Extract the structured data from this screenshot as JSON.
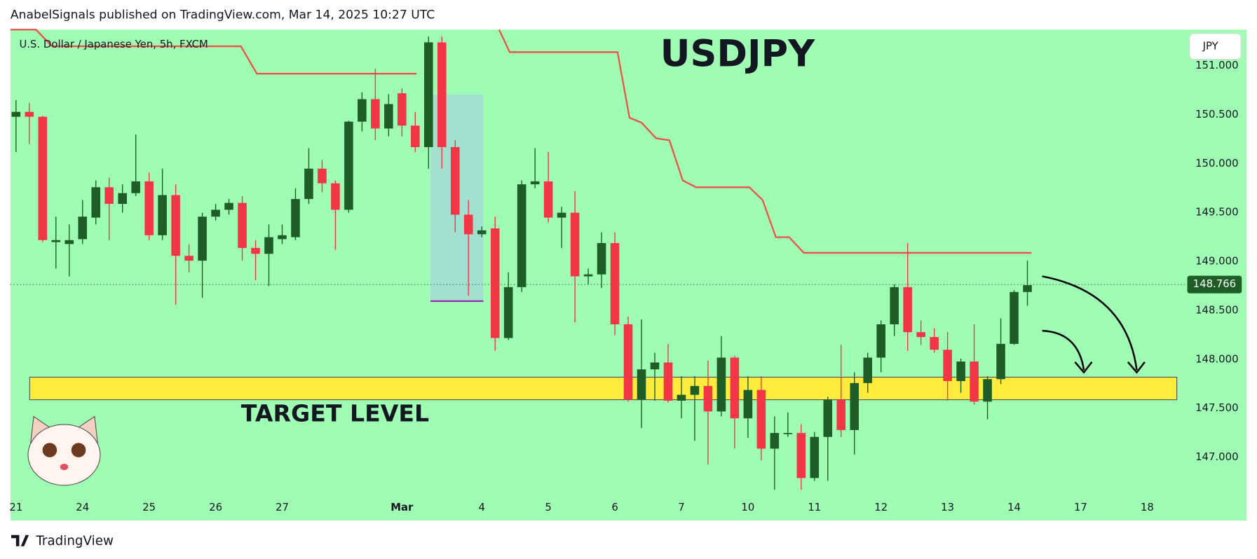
{
  "chart_data": {
    "type": "candlestick",
    "header": "AnabelSignals published on TradingView.com, Mar 14, 2025 10:27 UTC",
    "subtitle": "U.S. Dollar / Japanese Yen, 5h, FXCM",
    "title": "USDJPY",
    "currency": "JPY",
    "footer": "TradingView",
    "up_color": "#1e5e26",
    "down_color": "#f23645",
    "open": [
      150.48,
      150.53,
      150.48,
      149.2,
      149.18,
      149.23,
      149.45,
      149.76,
      149.59,
      149.7,
      149.82,
      149.27,
      149.68,
      149.06,
      149.01,
      149.46,
      149.53,
      149.6,
      149.14,
      149.08,
      149.23,
      149.25,
      149.64,
      149.95,
      149.8,
      149.53,
      150.43,
      150.66,
      150.36,
      150.72,
      150.39,
      150.17,
      151.24,
      150.17,
      149.48,
      149.28,
      149.34,
      148.22,
      148.74,
      149.79,
      149.82,
      149.45,
      149.5,
      148.85,
      148.87,
      149.19,
      148.36,
      147.59,
      147.9,
      147.97,
      147.58,
      147.64,
      147.73,
      147.47,
      148.02,
      147.4,
      147.69,
      147.09,
      147.24,
      147.25,
      146.79,
      147.21,
      147.59,
      147.28,
      147.76,
      148.02,
      148.36,
      148.74,
      148.28,
      148.23,
      148.1,
      147.78,
      147.98,
      147.57,
      147.8,
      148.16,
      148.69
    ],
    "high": [
      150.65,
      150.62,
      150.49,
      149.46,
      149.38,
      149.63,
      149.83,
      149.86,
      149.79,
      150.3,
      149.91,
      149.95,
      149.79,
      149.18,
      149.5,
      149.59,
      149.64,
      149.67,
      149.22,
      149.38,
      149.38,
      149.75,
      150.16,
      150.04,
      149.83,
      150.44,
      150.73,
      150.97,
      150.71,
      150.77,
      150.53,
      151.3,
      151.3,
      150.24,
      149.63,
      149.36,
      149.46,
      148.89,
      149.83,
      150.16,
      150.12,
      149.56,
      149.72,
      148.93,
      149.3,
      149.3,
      148.44,
      148.41,
      148.07,
      148.16,
      147.83,
      147.83,
      147.99,
      148.24,
      148.04,
      147.83,
      147.83,
      147.42,
      147.46,
      147.34,
      147.26,
      147.62,
      148.15,
      147.87,
      148.07,
      148.4,
      148.77,
      149.19,
      148.4,
      148.32,
      148.28,
      148.01,
      148.36,
      147.83,
      148.42,
      148.71,
      149.01
    ],
    "low": [
      150.12,
      150.2,
      149.2,
      148.93,
      148.85,
      149.18,
      149.38,
      149.22,
      149.5,
      149.67,
      149.22,
      149.22,
      148.56,
      148.89,
      148.63,
      149.42,
      149.48,
      149.01,
      148.81,
      148.75,
      149.18,
      149.22,
      149.59,
      149.71,
      149.12,
      149.5,
      150.33,
      150.24,
      150.28,
      150.28,
      150.12,
      149.95,
      149.95,
      149.3,
      148.65,
      149.25,
      148.09,
      148.2,
      148.69,
      149.75,
      149.4,
      149.14,
      148.38,
      148.77,
      148.73,
      148.25,
      147.57,
      147.3,
      147.58,
      147.56,
      147.4,
      147.17,
      146.93,
      147.42,
      147.09,
      147.2,
      146.97,
      146.67,
      147.21,
      146.67,
      146.76,
      146.76,
      147.21,
      147.03,
      147.66,
      147.87,
      148.24,
      148.09,
      148.15,
      148.07,
      147.58,
      147.66,
      147.54,
      147.39,
      147.75,
      148.15,
      148.55
    ],
    "close": [
      150.53,
      150.48,
      149.22,
      149.22,
      149.22,
      149.46,
      149.76,
      149.59,
      149.7,
      149.82,
      149.27,
      149.68,
      149.06,
      149.01,
      149.46,
      149.53,
      149.6,
      149.14,
      149.08,
      149.25,
      149.27,
      149.64,
      149.95,
      149.8,
      149.53,
      150.43,
      150.66,
      150.36,
      150.61,
      150.39,
      150.17,
      151.24,
      150.17,
      149.48,
      149.28,
      149.32,
      148.22,
      148.74,
      149.79,
      149.82,
      149.45,
      149.5,
      148.85,
      148.87,
      149.19,
      148.36,
      147.59,
      147.9,
      147.97,
      147.58,
      147.64,
      147.73,
      147.47,
      148.02,
      147.4,
      147.69,
      147.09,
      147.25,
      147.25,
      146.79,
      147.21,
      147.59,
      147.28,
      147.76,
      148.02,
      148.36,
      148.74,
      148.28,
      148.23,
      148.1,
      147.78,
      147.98,
      147.57,
      147.8,
      148.16,
      148.69,
      148.76
    ],
    "overlay": {
      "color": "#f0504a",
      "x": [
        -0.42,
        1.5,
        2.7,
        16.9,
        18.1,
        30.1,
        33,
        36.3,
        37.1,
        45.2,
        46.1,
        47,
        48.1,
        49.1,
        50.1,
        51.1,
        55.1,
        56.1,
        57.1,
        58.1,
        59.2,
        76.3
      ],
      "values": [
        151.37,
        151.37,
        151.2,
        151.2,
        150.92,
        150.92,
        null,
        151.37,
        151.14,
        151.14,
        150.47,
        150.42,
        150.26,
        150.24,
        149.83,
        149.76,
        149.76,
        149.63,
        149.25,
        149.25,
        149.09,
        149.09
      ]
    },
    "target_zone": {
      "low": 147.59,
      "high": 147.82,
      "label": "TARGET LEVEL",
      "color": "#ffeb3b"
    },
    "last_price": 148.766,
    "xlim": [
      -0.42,
      87.83
    ],
    "ylim": [
      146.65,
      151.37
    ],
    "xticks": [
      {
        "value": 0,
        "label": "21"
      },
      {
        "value": 5,
        "label": "24"
      },
      {
        "value": 10,
        "label": "25"
      },
      {
        "value": 15,
        "label": "26"
      },
      {
        "value": 20,
        "label": "27"
      },
      {
        "value": 29,
        "label": "Mar"
      },
      {
        "value": 35,
        "label": "4"
      },
      {
        "value": 40,
        "label": "5"
      },
      {
        "value": 45,
        "label": "6"
      },
      {
        "value": 50,
        "label": "7"
      },
      {
        "value": 55,
        "label": "10"
      },
      {
        "value": 60,
        "label": "11"
      },
      {
        "value": 65,
        "label": "12"
      },
      {
        "value": 70,
        "label": "13"
      },
      {
        "value": 75,
        "label": "14"
      },
      {
        "value": 80,
        "label": "17"
      },
      {
        "value": 85,
        "label": "18"
      }
    ],
    "yticks": [
      {
        "value": 147,
        "label": "147.000"
      },
      {
        "value": 147.5,
        "label": "147.500"
      },
      {
        "value": 148,
        "label": "148.000"
      },
      {
        "value": 148.5,
        "label": "148.500"
      },
      {
        "value": 149,
        "label": "149.000"
      },
      {
        "value": 149.5,
        "label": "149.500"
      },
      {
        "value": 150,
        "label": "150.000"
      },
      {
        "value": 150.5,
        "label": "150.500"
      },
      {
        "value": 151,
        "label": "151.000"
      }
    ]
  }
}
